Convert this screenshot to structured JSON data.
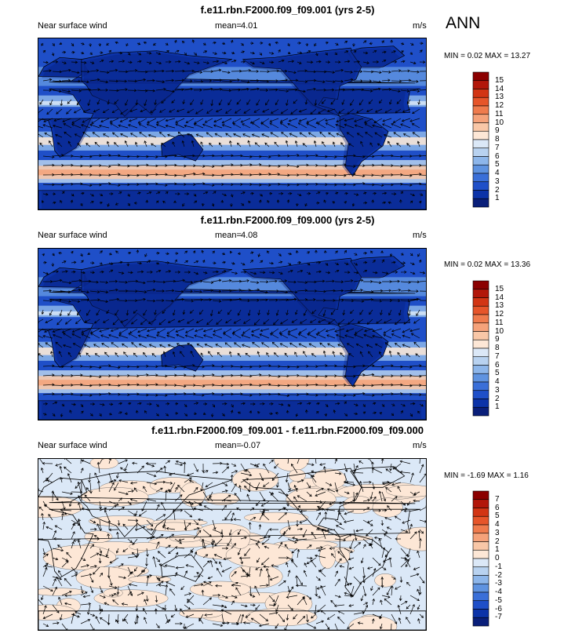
{
  "season": "ANN",
  "panels": [
    {
      "title": "f.e11.rbn.F2000.f09_f09.001 (yrs 2-5)",
      "variable": "Near surface wind",
      "mean_label": "mean=",
      "mean_value": "4.01",
      "units": "m/s",
      "minmax": "MIN =  0.02 MAX =  13.27",
      "colorbar": {
        "levels": [
          "15",
          "14",
          "13",
          "12",
          "11",
          "10",
          "9",
          "8",
          "7",
          "6",
          "5",
          "4",
          "3",
          "2",
          "1"
        ],
        "colors": [
          "#8b0000",
          "#b2170a",
          "#d23514",
          "#e6552a",
          "#ef7b4d",
          "#f5a27a",
          "#f9c7a7",
          "#fde7d6",
          "#dbe8f7",
          "#b8d2f0",
          "#8db6ea",
          "#5f93e0",
          "#3a6fd8",
          "#1f4fc8",
          "#0c33a8",
          "#0a1f7a"
        ]
      },
      "style": "speed"
    },
    {
      "title": "f.e11.rbn.F2000.f09_f09.000 (yrs 2-5)",
      "variable": "Near surface wind",
      "mean_label": "mean=",
      "mean_value": "4.08",
      "units": "m/s",
      "minmax": "MIN =  0.02 MAX =  13.36",
      "colorbar": {
        "levels": [
          "15",
          "14",
          "13",
          "12",
          "11",
          "10",
          "9",
          "8",
          "7",
          "6",
          "5",
          "4",
          "3",
          "2",
          "1"
        ],
        "colors": [
          "#8b0000",
          "#b2170a",
          "#d23514",
          "#e6552a",
          "#ef7b4d",
          "#f5a27a",
          "#f9c7a7",
          "#fde7d6",
          "#dbe8f7",
          "#b8d2f0",
          "#8db6ea",
          "#5f93e0",
          "#3a6fd8",
          "#1f4fc8",
          "#0c33a8",
          "#0a1f7a"
        ]
      },
      "style": "speed"
    },
    {
      "title": "f.e11.rbn.F2000.f09_f09.001 - f.e11.rbn.F2000.f09_f09.000",
      "variable": "Near surface wind",
      "mean_label": "mean=",
      "mean_value": "-0.07",
      "units": "m/s",
      "minmax": "MIN = -1.69 MAX =  1.16",
      "colorbar": {
        "levels": [
          "7",
          "6",
          "5",
          "4",
          "3",
          "2",
          "1",
          "0",
          "-1",
          "-2",
          "-3",
          "-4",
          "-5",
          "-6",
          "-7"
        ],
        "colors": [
          "#8b0000",
          "#b2170a",
          "#d23514",
          "#e6552a",
          "#ef7b4d",
          "#f5a27a",
          "#f9c7a7",
          "#fde7d6",
          "#dbe8f7",
          "#b8d2f0",
          "#8db6ea",
          "#5f93e0",
          "#3a6fd8",
          "#1f4fc8",
          "#0c33a8",
          "#0a1f7a"
        ]
      },
      "style": "diff"
    }
  ]
}
